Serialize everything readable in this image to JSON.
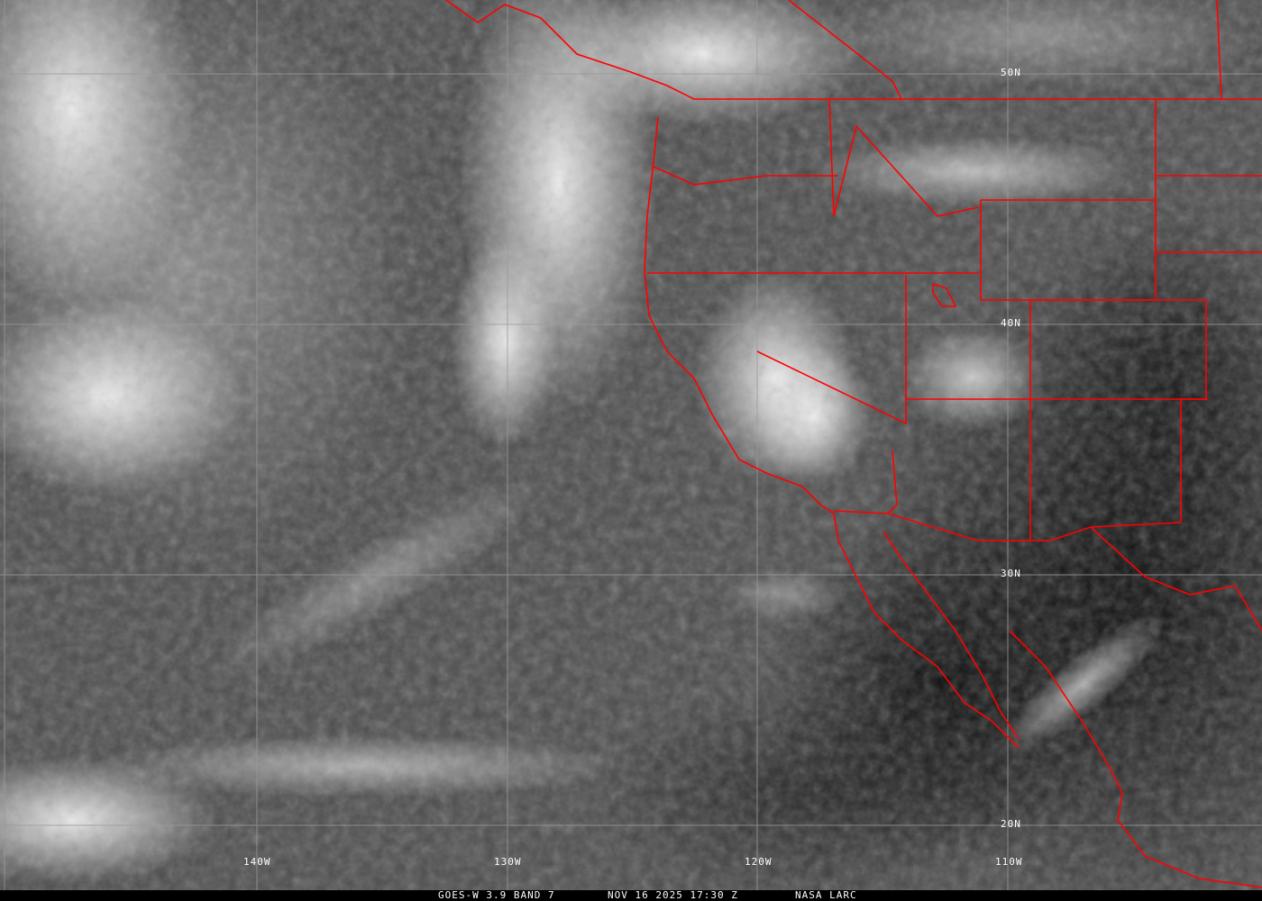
{
  "footer": {
    "satellite": "GOES-W 3.9 BAND 7",
    "datetime": "NOV 16 2025 17:30 Z",
    "source": "NASA LARC"
  },
  "grid": {
    "longitudes": [
      "140W",
      "130W",
      "120W",
      "110W"
    ],
    "latitudes": [
      "50N",
      "40N",
      "30N",
      "20N"
    ]
  },
  "colors": {
    "borders": "#ff0000",
    "grid": "#9a9a9a",
    "background": "#000000"
  }
}
